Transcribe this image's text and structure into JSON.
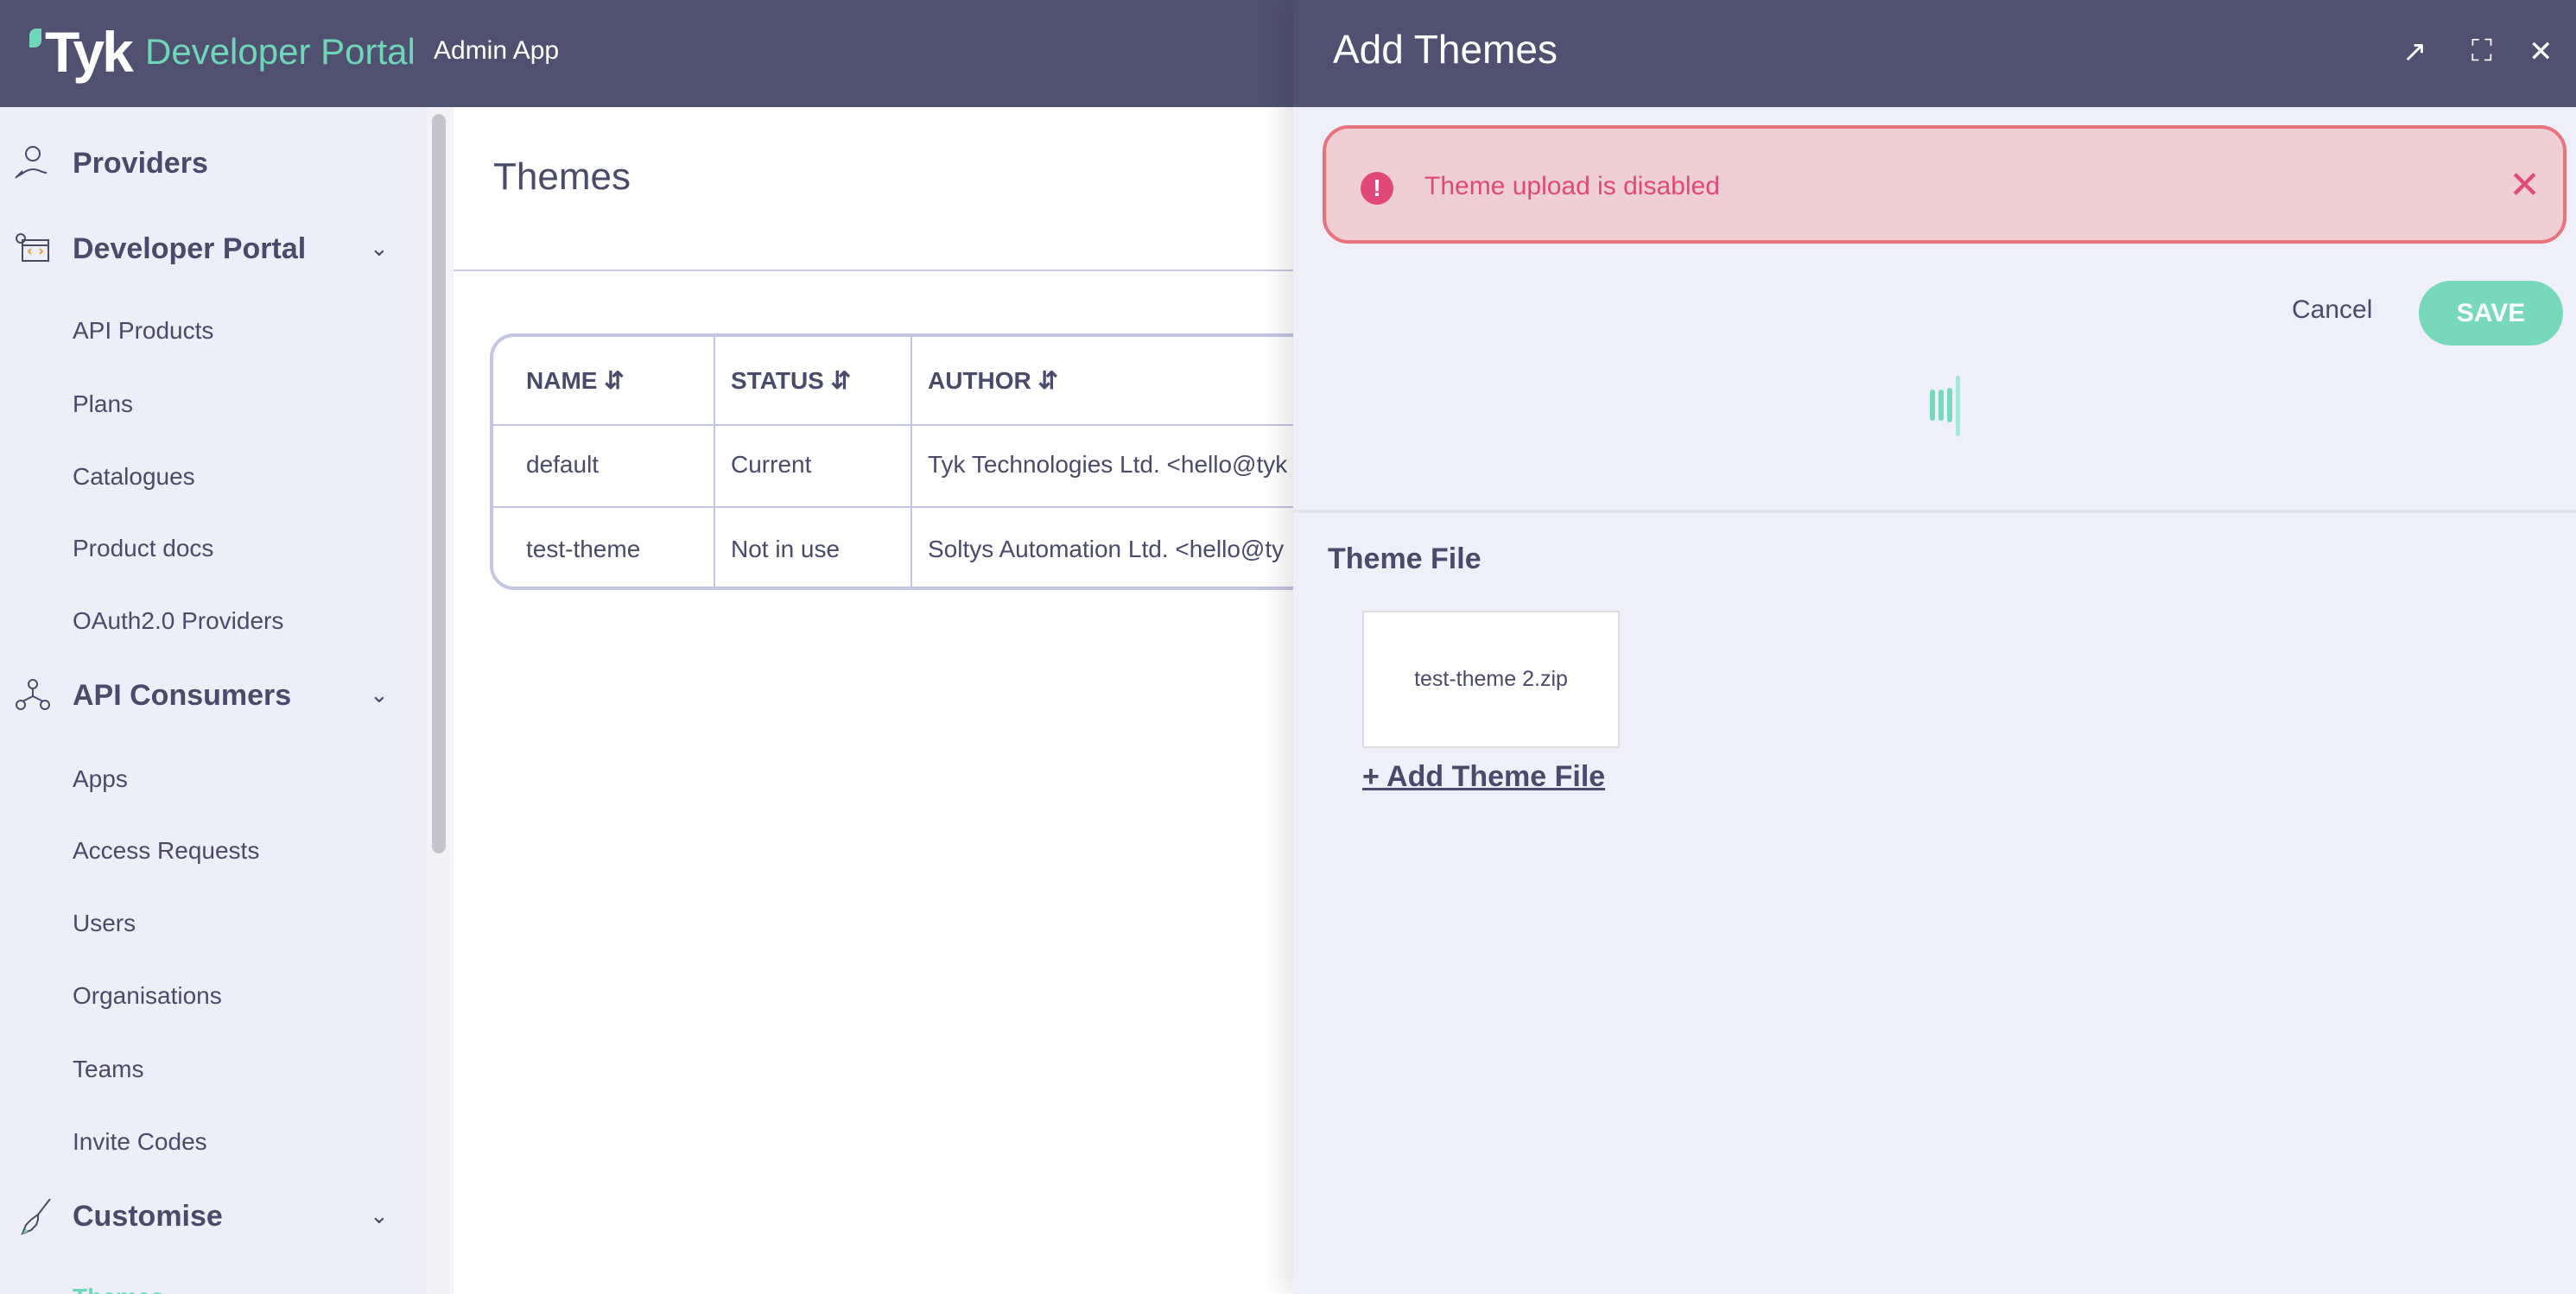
{
  "header": {
    "logo": "Tyk",
    "brand": "Developer Portal",
    "app": "Admin App"
  },
  "sidebar": {
    "providers": "Providers",
    "developer_portal": {
      "label": "Developer Portal",
      "items": [
        "API Products",
        "Plans",
        "Catalogues",
        "Product docs",
        "OAuth2.0 Providers"
      ]
    },
    "api_consumers": {
      "label": "API Consumers",
      "items": [
        "Apps",
        "Access Requests",
        "Users",
        "Organisations",
        "Teams",
        "Invite Codes"
      ]
    },
    "customise": {
      "label": "Customise",
      "items": [
        "Themes"
      ]
    }
  },
  "main": {
    "title": "Themes",
    "table": {
      "headers": [
        "NAME",
        "STATUS",
        "AUTHOR"
      ],
      "rows": [
        [
          "default",
          "Current",
          "Tyk Technologies Ltd. <hello@tyk"
        ],
        [
          "test-theme",
          "Not in use",
          "Soltys Automation Ltd. <hello@ty"
        ]
      ]
    }
  },
  "drawer": {
    "title": "Add Themes",
    "alert": "Theme upload is disabled",
    "cancel": "Cancel",
    "save": "SAVE",
    "theme_file_label": "Theme File",
    "file_name": "test-theme 2.zip",
    "add_file": "+ Add Theme File"
  },
  "colors": {
    "header": "#505170",
    "accent": "#77d8bb",
    "error": "#e0487a",
    "alert_bg": "#efcfd4"
  }
}
